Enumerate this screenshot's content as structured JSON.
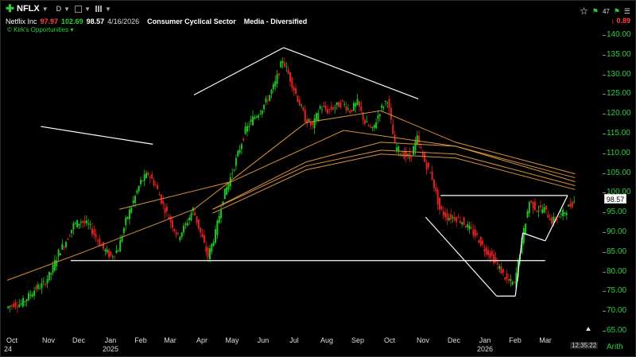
{
  "toolbar": {
    "ticker": "NFLX",
    "period": "D"
  },
  "info": {
    "company": "Netflix Inc",
    "low": "97.97",
    "high": "102.69",
    "last": "98.57",
    "date": "4/16/2026",
    "sector": "Consumer Cyclical Sector",
    "industry": "Media - Diversified"
  },
  "watchlist": "© Kirk's Opportunities",
  "change": "0.89",
  "badge": "47",
  "clock": "12:35:22",
  "scale": "Arith",
  "colors": {
    "up": "#22c322",
    "down": "#e02020",
    "ma": "#d9903a",
    "trend": "#ffffff",
    "axis": "#2ecc40"
  },
  "chart_data": {
    "type": "candlestick",
    "ylim": [
      65,
      140
    ],
    "ytick_labels": [
      "140.00",
      "135.00",
      "130.00",
      "125.00",
      "120.00",
      "115.00",
      "110.00",
      "105.00",
      "100.00",
      "95.00",
      "90.00",
      "85.00",
      "80.00",
      "75.00",
      "70.00",
      "65.00"
    ],
    "current_price": "98.57",
    "x_labels": [
      "Oct",
      "Nov",
      "Dec",
      "Jan",
      "Feb",
      "Mar",
      "Apr",
      "May",
      "Jun",
      "Jul",
      "Aug",
      "Sep",
      "Oct",
      "Nov",
      "Dec",
      "Jan",
      "Feb",
      "Mar"
    ],
    "year_labels": [
      "24",
      "2025",
      "2026"
    ],
    "price_path": [
      [
        0,
        71
      ],
      [
        2,
        72
      ],
      [
        4,
        72
      ],
      [
        6,
        74
      ],
      [
        8,
        76
      ],
      [
        10,
        77
      ],
      [
        12,
        80
      ],
      [
        14,
        85
      ],
      [
        16,
        88
      ],
      [
        18,
        92
      ],
      [
        20,
        93
      ],
      [
        22,
        92
      ],
      [
        24,
        89
      ],
      [
        26,
        86
      ],
      [
        28,
        84
      ],
      [
        30,
        86
      ],
      [
        32,
        93
      ],
      [
        34,
        98
      ],
      [
        36,
        103
      ],
      [
        38,
        105
      ],
      [
        40,
        102
      ],
      [
        42,
        97
      ],
      [
        44,
        93
      ],
      [
        46,
        89
      ],
      [
        48,
        92
      ],
      [
        50,
        96
      ],
      [
        52,
        90
      ],
      [
        54,
        84
      ],
      [
        56,
        90
      ],
      [
        58,
        99
      ],
      [
        60,
        104
      ],
      [
        62,
        110
      ],
      [
        64,
        116
      ],
      [
        66,
        119
      ],
      [
        68,
        121
      ],
      [
        70,
        124
      ],
      [
        72,
        128
      ],
      [
        74,
        134
      ],
      [
        76,
        129
      ],
      [
        78,
        124
      ],
      [
        80,
        119
      ],
      [
        82,
        117
      ],
      [
        84,
        122
      ],
      [
        86,
        121
      ],
      [
        88,
        122
      ],
      [
        90,
        123
      ],
      [
        92,
        121
      ],
      [
        94,
        123
      ],
      [
        96,
        118
      ],
      [
        98,
        116
      ],
      [
        100,
        121
      ],
      [
        102,
        124
      ],
      [
        104,
        112
      ],
      [
        106,
        110
      ],
      [
        108,
        109
      ],
      [
        110,
        114
      ],
      [
        112,
        108
      ],
      [
        114,
        104
      ],
      [
        116,
        96
      ],
      [
        118,
        94
      ],
      [
        120,
        94
      ],
      [
        122,
        93
      ],
      [
        124,
        91
      ],
      [
        126,
        89
      ],
      [
        128,
        86
      ],
      [
        130,
        84
      ],
      [
        132,
        81
      ],
      [
        134,
        78
      ],
      [
        136,
        77
      ],
      [
        138,
        88
      ],
      [
        140,
        98
      ],
      [
        142,
        96
      ],
      [
        144,
        96
      ],
      [
        146,
        93
      ],
      [
        148,
        94
      ],
      [
        150,
        96
      ],
      [
        152,
        98
      ]
    ],
    "ma_lines": [
      [
        [
          0,
          78
        ],
        [
          20,
          85
        ],
        [
          50,
          96
        ],
        [
          80,
          118
        ],
        [
          100,
          121
        ],
        [
          120,
          113
        ],
        [
          140,
          108
        ],
        [
          152,
          105
        ]
      ],
      [
        [
          30,
          96
        ],
        [
          60,
          103
        ],
        [
          90,
          116
        ],
        [
          120,
          112
        ],
        [
          152,
          104
        ]
      ],
      [
        [
          55,
          96
        ],
        [
          80,
          108
        ],
        [
          100,
          113
        ],
        [
          120,
          112
        ],
        [
          152,
          103
        ]
      ],
      [
        [
          55,
          96
        ],
        [
          80,
          107
        ],
        [
          100,
          111
        ],
        [
          120,
          110
        ],
        [
          152,
          102
        ]
      ],
      [
        [
          55,
          95
        ],
        [
          80,
          106
        ],
        [
          100,
          110
        ],
        [
          120,
          109
        ],
        [
          152,
          101
        ]
      ]
    ],
    "trendlines": [
      [
        [
          9,
          117
        ],
        [
          39,
          112.5
        ]
      ],
      [
        [
          50,
          125
        ],
        [
          74,
          137
        ]
      ],
      [
        [
          74,
          137
        ],
        [
          110,
          124
        ]
      ],
      [
        [
          17,
          83
        ],
        [
          144,
          83
        ]
      ],
      [
        [
          116,
          99.5
        ],
        [
          150,
          99.5
        ]
      ],
      [
        [
          112,
          94
        ],
        [
          131,
          74
        ]
      ],
      [
        [
          131,
          74
        ],
        [
          136,
          74
        ]
      ],
      [
        [
          136,
          74
        ],
        [
          138,
          90
        ]
      ],
      [
        [
          138,
          90
        ],
        [
          144,
          88
        ]
      ],
      [
        [
          144,
          88
        ],
        [
          150,
          99.5
        ]
      ]
    ]
  }
}
